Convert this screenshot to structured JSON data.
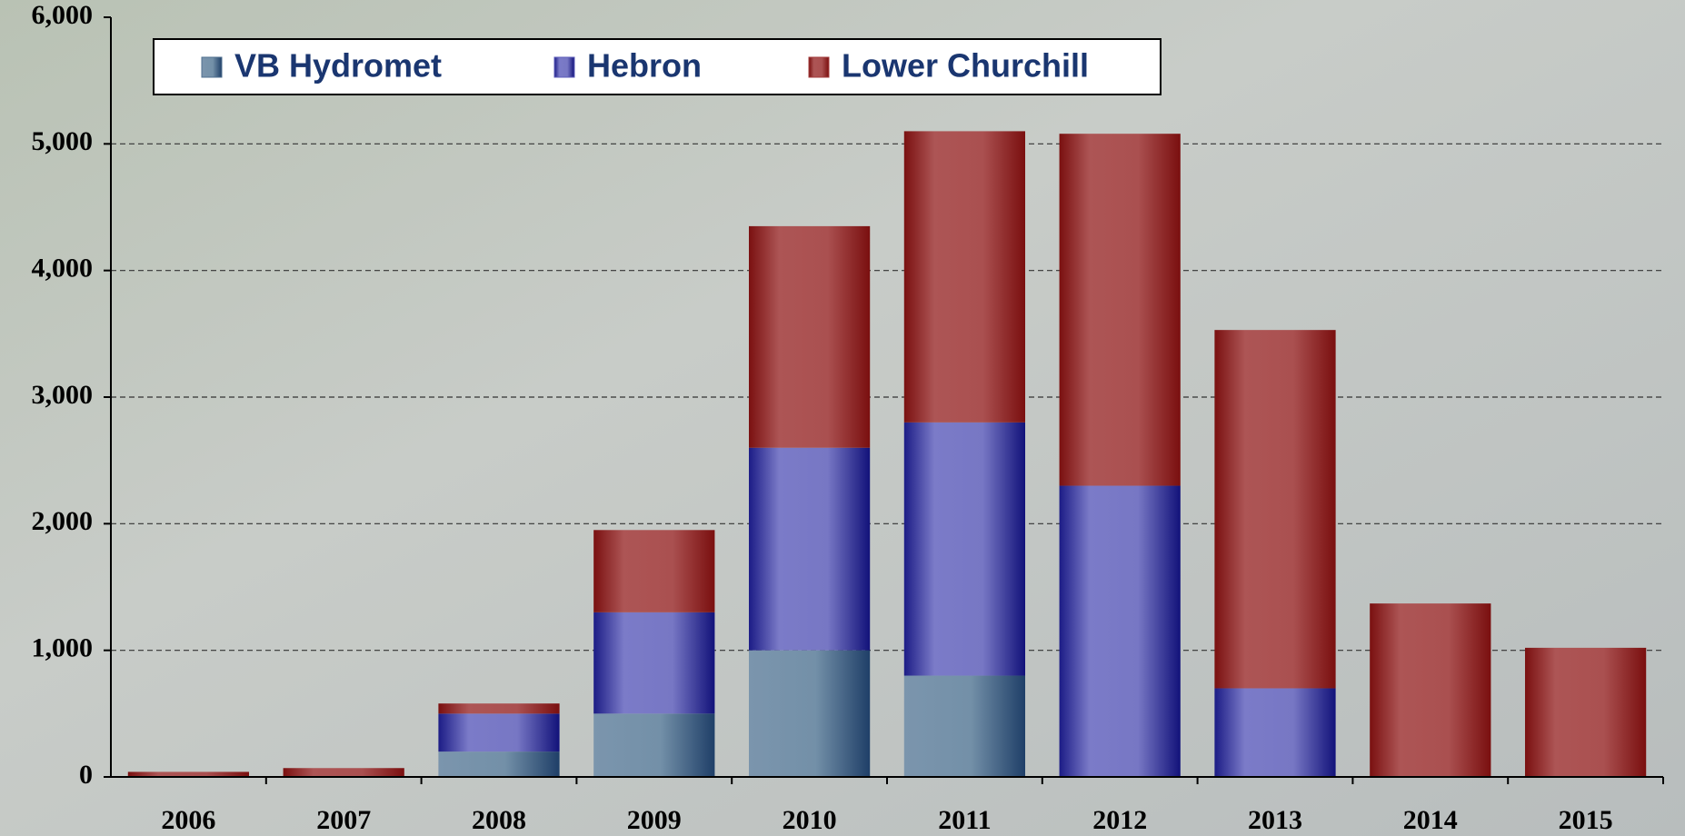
{
  "chart_data": {
    "type": "stacked_bar",
    "categories": [
      "2006",
      "2007",
      "2008",
      "2009",
      "2010",
      "2011",
      "2012",
      "2013",
      "2014",
      "2015"
    ],
    "series": [
      {
        "name": "VB Hydromet",
        "color": "#4f6f8f",
        "values": [
          0,
          0,
          200,
          500,
          1000,
          800,
          0,
          0,
          0,
          0
        ]
      },
      {
        "name": "Hebron",
        "color": "#5d5dba",
        "values": [
          0,
          0,
          300,
          800,
          1600,
          2000,
          2300,
          700,
          0,
          0
        ]
      },
      {
        "name": "Lower Churchill",
        "color": "#a33c3c",
        "values": [
          40,
          70,
          80,
          650,
          1750,
          2300,
          2780,
          2830,
          1370,
          1020
        ]
      }
    ],
    "ylim": [
      0,
      6000
    ],
    "yticks": [
      0,
      {
        "value": 1000,
        "label": "1,000"
      },
      {
        "value": 2000,
        "label": "2,000"
      },
      {
        "value": 3000,
        "label": "3,000"
      },
      {
        "value": 4000,
        "label": "4,000"
      },
      {
        "value": 5000,
        "label": "5,000"
      },
      {
        "value": 6000,
        "label": "6,000"
      }
    ],
    "grid": true
  }
}
